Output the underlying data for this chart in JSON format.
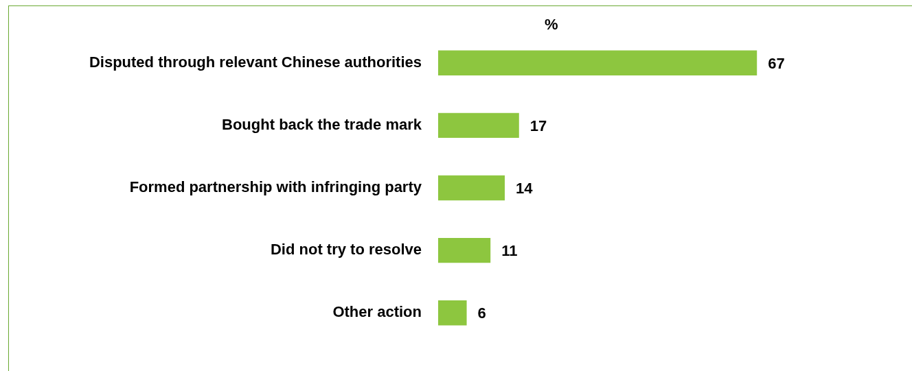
{
  "chart_data": {
    "type": "bar",
    "orientation": "horizontal",
    "xlabel": "%",
    "categories": [
      "Disputed through relevant Chinese authorities",
      "Bought back the trade mark",
      "Formed partnership with infringing party",
      "Did not try to resolve",
      "Other action"
    ],
    "values": [
      67,
      17,
      14,
      11,
      6
    ],
    "color": "#8dc63f",
    "data_labels": true,
    "grid": false,
    "legend": false
  }
}
